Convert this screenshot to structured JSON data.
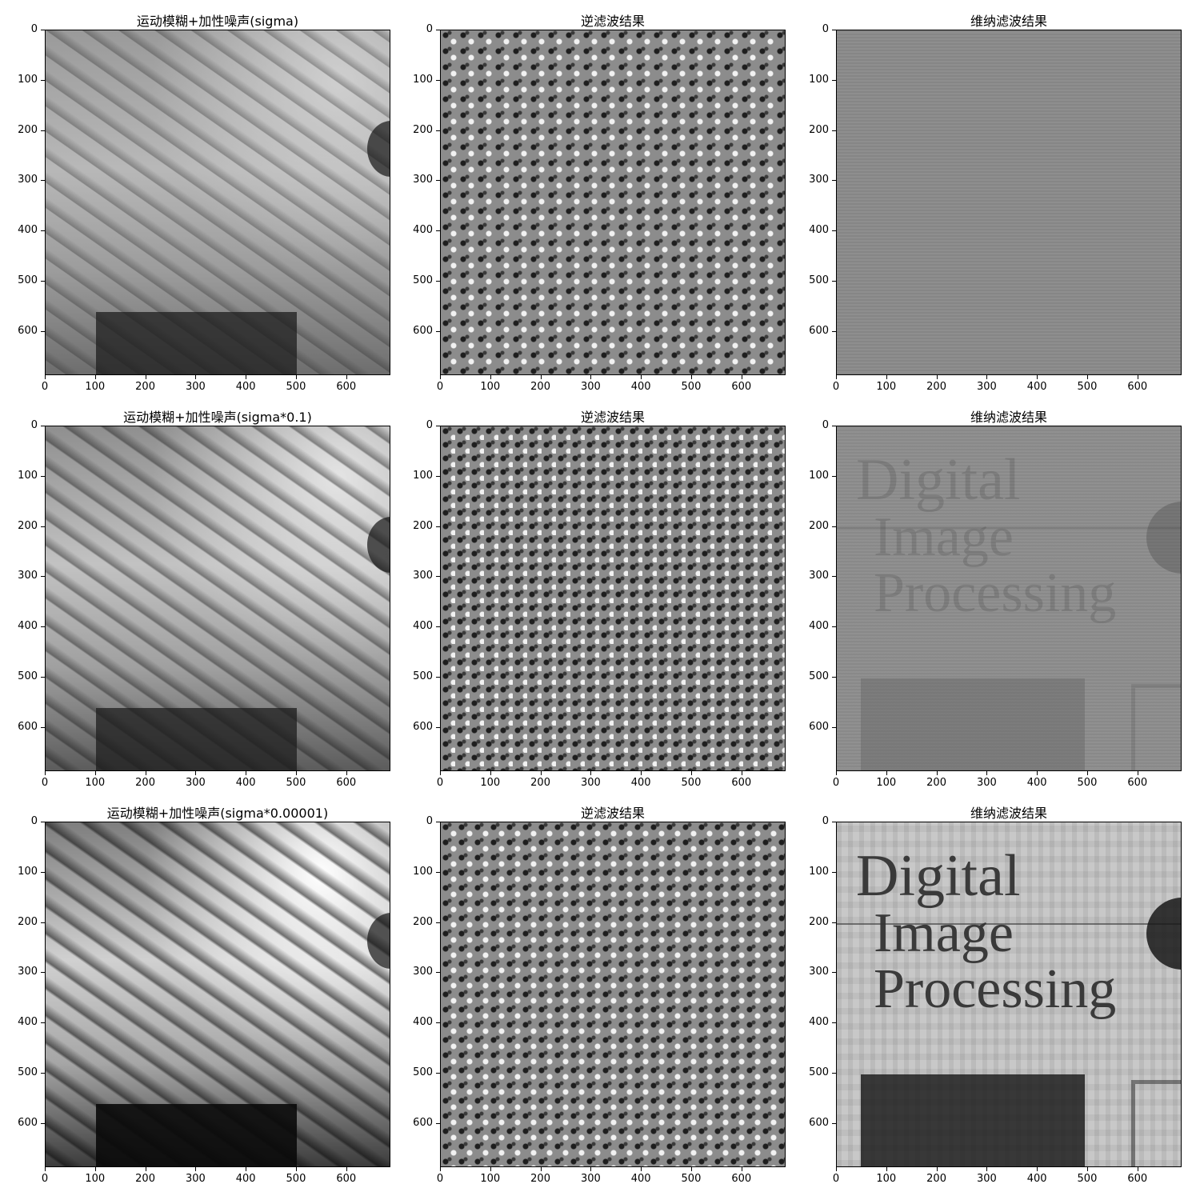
{
  "figure": {
    "panels": [
      {
        "title": "运动模糊+加性噪声(sigma)",
        "kind": "blurred-noisy"
      },
      {
        "title": "逆滤波结果",
        "kind": "inverse"
      },
      {
        "title": "维纳滤波结果",
        "kind": "wiener-flat"
      },
      {
        "title": "运动模糊+加性噪声(sigma*0.1)",
        "kind": "blurred-mid"
      },
      {
        "title": "逆滤波结果",
        "kind": "inverse"
      },
      {
        "title": "维纳滤波结果",
        "kind": "wiener-mid"
      },
      {
        "title": "运动模糊+加性噪声(sigma*0.00001)",
        "kind": "blurred-clean"
      },
      {
        "title": "逆滤波结果",
        "kind": "inverse"
      },
      {
        "title": "维纳滤波结果",
        "kind": "wiener-clear"
      }
    ],
    "axis_ticks": [
      "0",
      "100",
      "200",
      "300",
      "400",
      "500",
      "600"
    ],
    "axis_range": [
      0,
      688
    ],
    "restored_text": {
      "line1": "Digital",
      "line2": "Image",
      "line3": "Processing"
    },
    "colors": {
      "gray_mid": "#808080",
      "black": "#000000",
      "white": "#ffffff"
    }
  }
}
